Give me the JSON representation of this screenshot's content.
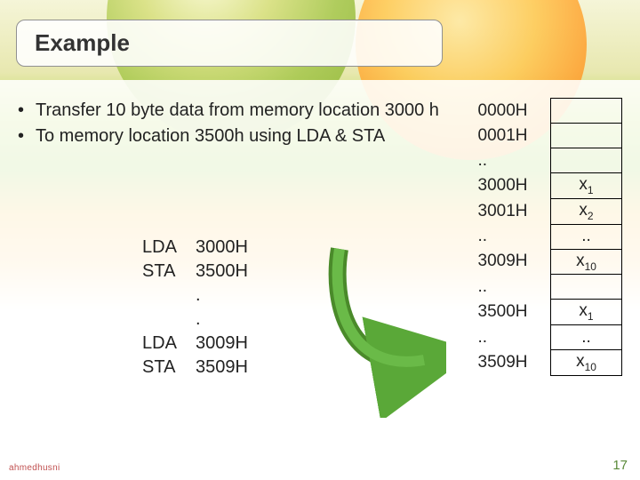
{
  "title": "Example",
  "bullets": [
    "Transfer 10 byte data from memory location 3000 h",
    "To memory location 3500h using LDA & STA"
  ],
  "code": [
    {
      "mnemonic": "LDA",
      "operand": "3000H"
    },
    {
      "mnemonic": "STA",
      "operand": "3500H"
    },
    {
      "mnemonic": "",
      "operand": "."
    },
    {
      "mnemonic": "",
      "operand": "."
    },
    {
      "mnemonic": "LDA",
      "operand": "3009H"
    },
    {
      "mnemonic": "STA",
      "operand": "3509H"
    }
  ],
  "memory": [
    {
      "addr": "0000H",
      "val": ""
    },
    {
      "addr": "0001H",
      "val": ""
    },
    {
      "addr": "..",
      "val": ""
    },
    {
      "addr": "3000H",
      "val": "x",
      "sub": "1"
    },
    {
      "addr": "3001H",
      "val": "x",
      "sub": "2"
    },
    {
      "addr": "..",
      "val": ".."
    },
    {
      "addr": "3009H",
      "val": "x",
      "sub": "10"
    },
    {
      "addr": "..",
      "val": ""
    },
    {
      "addr": "3500H",
      "val": "x",
      "sub": "1"
    },
    {
      "addr": "..",
      "val": ".."
    },
    {
      "addr": "3509H",
      "val": "x",
      "sub": "10"
    }
  ],
  "arrow": {
    "stroke": "#4a8a2a",
    "fill": "#5aa838",
    "width": 7
  },
  "page_number": "17",
  "watermark": "ahmedhusni",
  "colors": {
    "title_text": "#333333",
    "body_text": "#222222",
    "table_border": "#000000",
    "pagenum": "#5a8a3a",
    "watermark": "#c05050"
  }
}
